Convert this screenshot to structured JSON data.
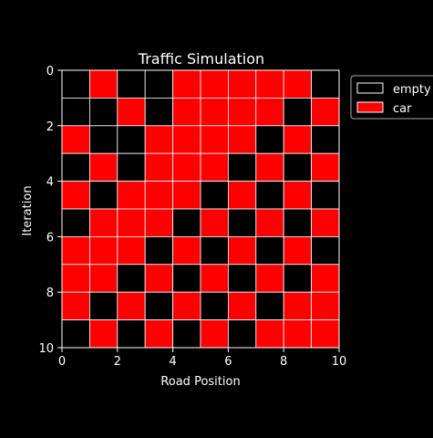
{
  "chart_data": {
    "type": "heatmap",
    "title": "Traffic Simulation",
    "xlabel": "Road Position",
    "ylabel": "Iteration",
    "xlim": [
      0,
      10
    ],
    "ylim": [
      10,
      0
    ],
    "xticks": [
      "0",
      "2",
      "4",
      "6",
      "8",
      "10"
    ],
    "yticks": [
      "0",
      "2",
      "4",
      "6",
      "8",
      "10"
    ],
    "grid": false,
    "legend": {
      "placement": "outside-top-right",
      "entries": [
        {
          "label": "empty",
          "value": 0,
          "color": "#000000"
        },
        {
          "label": "car",
          "value": 1,
          "color": "#ff0000"
        }
      ]
    },
    "colors": {
      "empty": "#000000",
      "car": "#ff0000",
      "cell_border": "#ffffff"
    },
    "grid_values": [
      [
        0,
        1,
        0,
        0,
        1,
        1,
        1,
        1,
        1,
        0
      ],
      [
        0,
        0,
        1,
        0,
        1,
        1,
        1,
        1,
        0,
        1
      ],
      [
        1,
        0,
        0,
        1,
        1,
        1,
        1,
        0,
        1,
        0
      ],
      [
        0,
        1,
        0,
        1,
        1,
        1,
        0,
        1,
        0,
        1
      ],
      [
        1,
        0,
        1,
        1,
        1,
        0,
        1,
        0,
        1,
        0
      ],
      [
        0,
        1,
        1,
        1,
        0,
        1,
        0,
        1,
        0,
        1
      ],
      [
        1,
        1,
        1,
        0,
        1,
        0,
        1,
        0,
        1,
        0
      ],
      [
        1,
        1,
        0,
        1,
        0,
        1,
        0,
        1,
        0,
        1
      ],
      [
        1,
        0,
        1,
        0,
        1,
        0,
        1,
        0,
        1,
        1
      ],
      [
        0,
        1,
        0,
        1,
        0,
        1,
        0,
        1,
        1,
        1
      ]
    ]
  }
}
